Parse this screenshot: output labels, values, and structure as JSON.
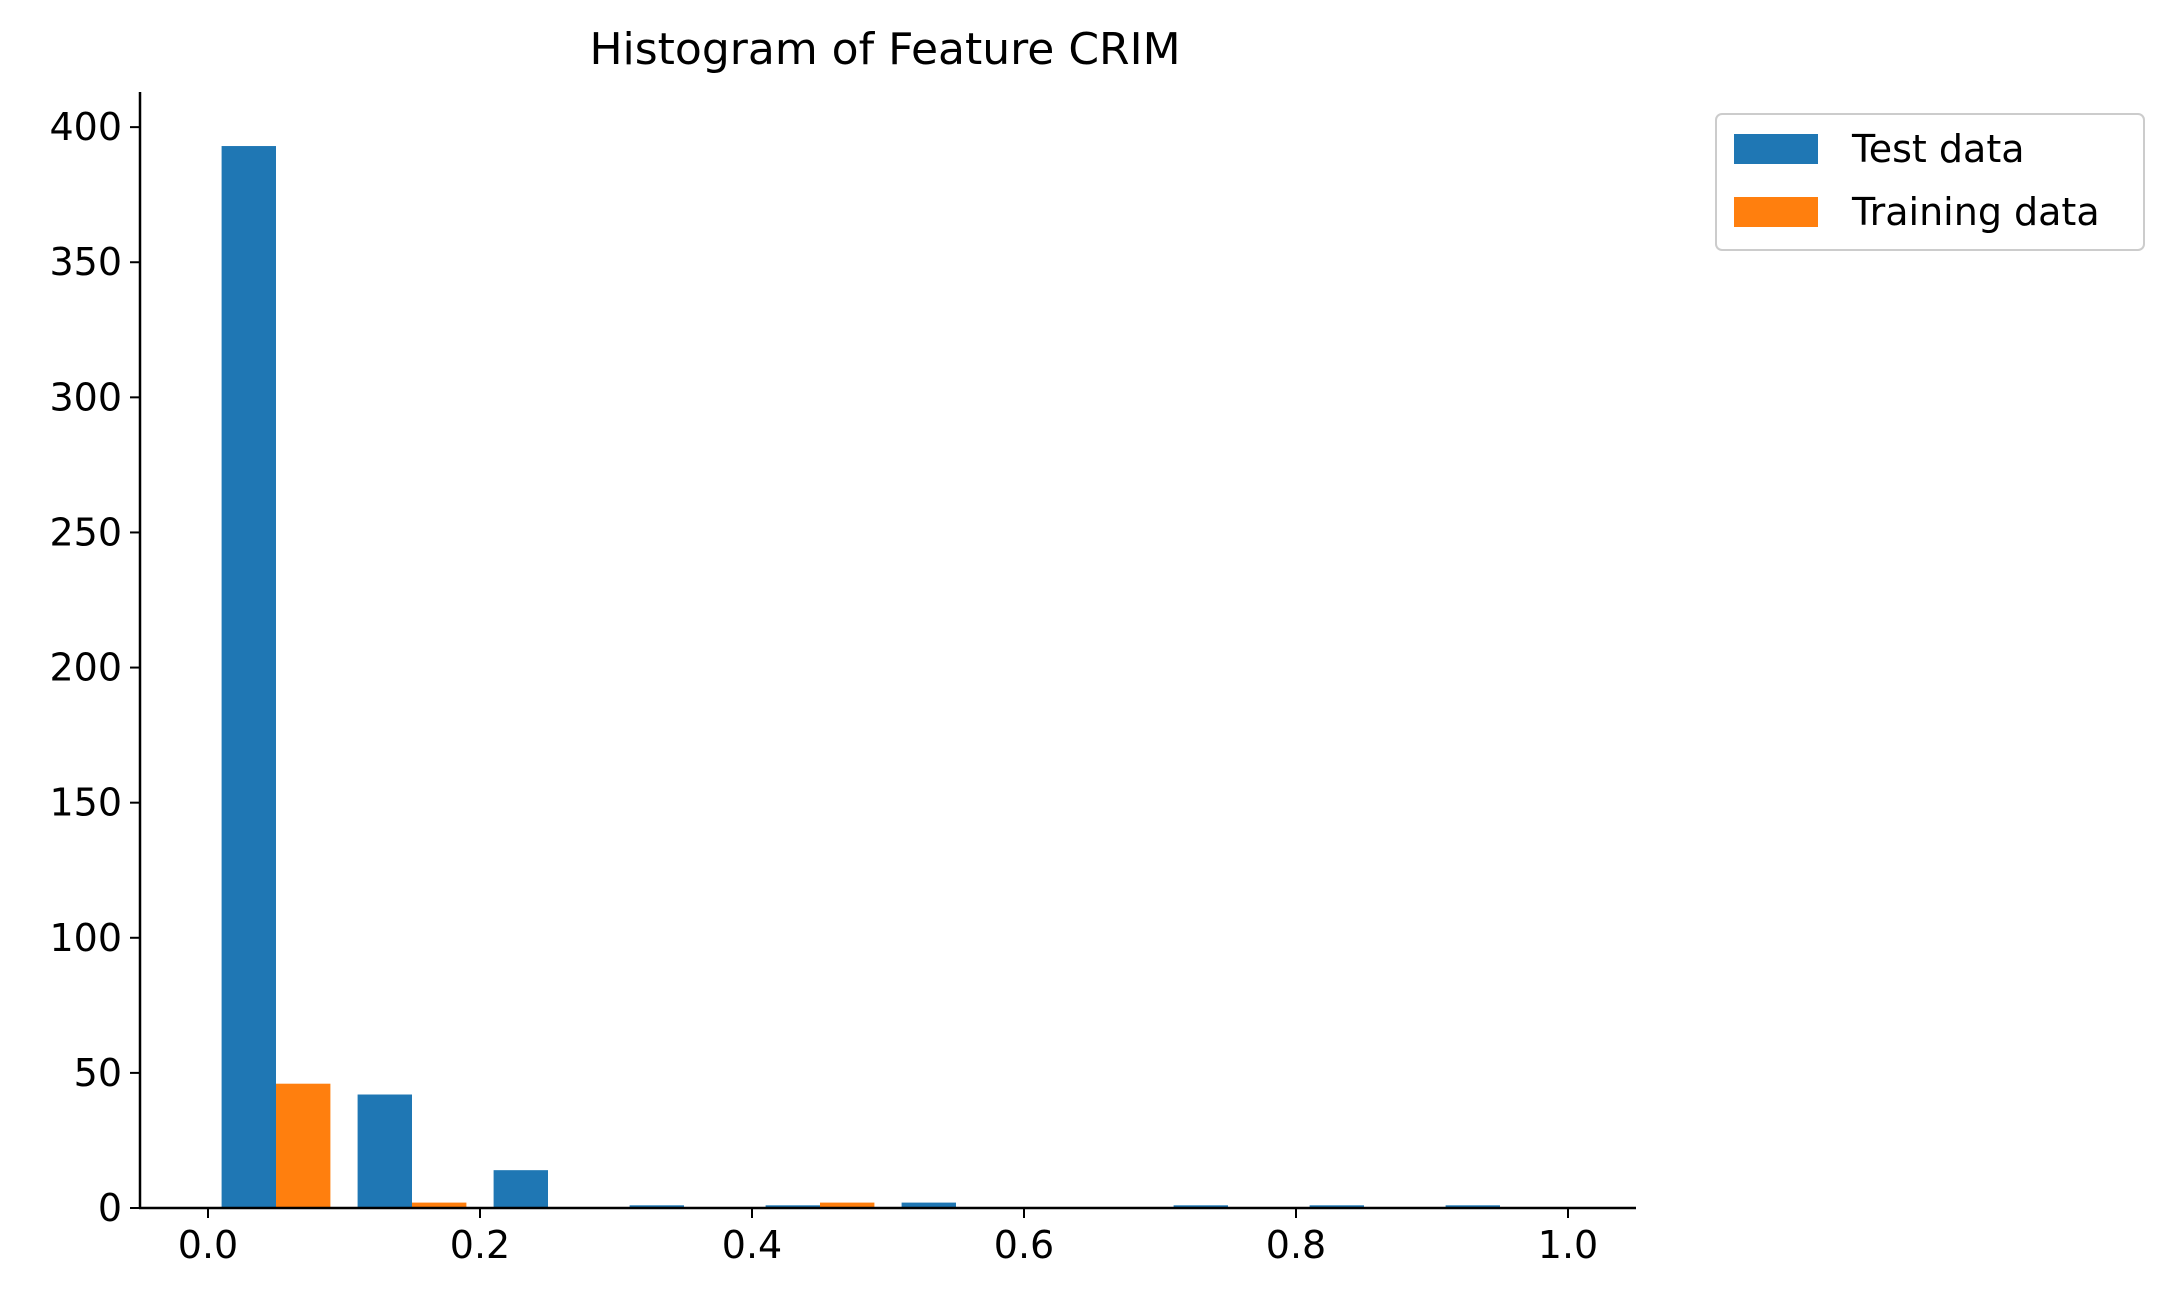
{
  "chart_data": {
    "type": "bar",
    "title": "Histogram of Feature CRIM",
    "xlabel": "",
    "ylabel": "",
    "xlim": [
      -0.05,
      1.05
    ],
    "ylim": [
      0,
      413
    ],
    "x_ticks": [
      "0.0",
      "0.2",
      "0.4",
      "0.6",
      "0.8",
      "1.0"
    ],
    "x_tick_values": [
      0.0,
      0.2,
      0.4,
      0.6,
      0.8,
      1.0
    ],
    "y_ticks": [
      "0",
      "50",
      "100",
      "150",
      "200",
      "250",
      "300",
      "350",
      "400"
    ],
    "y_tick_values": [
      0,
      50,
      100,
      150,
      200,
      250,
      300,
      350,
      400
    ],
    "bin_edges": [
      0.0,
      0.1,
      0.2,
      0.3,
      0.4,
      0.5,
      0.6,
      0.7,
      0.8,
      0.9,
      1.0
    ],
    "grid": false,
    "legend_position": "outside-top-right",
    "series": [
      {
        "name": "Test data",
        "color": "#1f77b4",
        "values": [
          393,
          42,
          14,
          1,
          1,
          2,
          0,
          1,
          1,
          1
        ]
      },
      {
        "name": "Training data",
        "color": "#ff7f0e",
        "values": [
          46,
          2,
          0,
          0,
          2,
          0,
          0,
          0,
          0,
          0
        ]
      }
    ]
  }
}
